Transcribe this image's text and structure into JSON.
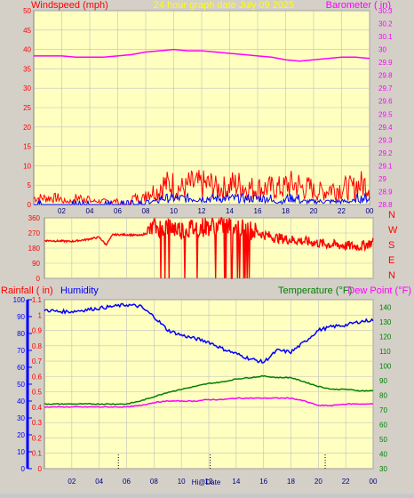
{
  "colors": {
    "panel_bg": "#ffffc0",
    "windspeed": "#ff0000",
    "gust": "#0000ff",
    "barometer": "#ff00ff",
    "wind_direction": "#ff0000",
    "rainfall": "#ff0000",
    "humidity": "#0000ff",
    "temperature": "#008000",
    "dew_point": "#ff00ff",
    "grid": "#c0c0c0"
  },
  "chart_data": [
    {
      "type": "line",
      "left_title": "Windspeed (mph)",
      "title": "24 hour graph date   July 09 2025",
      "right_title": "Barometer ( in)",
      "x_ticks": [
        "02",
        "04",
        "06",
        "08",
        "10",
        "12",
        "14",
        "16",
        "18",
        "20",
        "22",
        "00"
      ],
      "y_ticks": [
        0,
        5,
        10,
        15,
        20,
        25,
        30,
        35,
        40,
        45,
        50
      ],
      "ylim": [
        0,
        50
      ],
      "y2_ticks": [
        "28.8",
        "28.9",
        "29",
        "29.1",
        "29.2",
        "29.3",
        "29.4",
        "29.5",
        "29.6",
        "29.7",
        "29.8",
        "29.9",
        "30",
        "30.1",
        "30.2",
        "30.3"
      ],
      "y2lim": [
        28.8,
        30.3
      ],
      "series": [
        {
          "role": "barometer",
          "x": [
            1,
            2,
            3,
            4,
            5,
            6,
            7,
            8,
            9,
            10,
            11,
            12,
            13,
            14,
            15,
            16,
            17,
            18,
            19,
            20,
            21,
            22,
            23,
            24
          ],
          "values": [
            29.95,
            29.95,
            29.94,
            29.94,
            29.94,
            29.95,
            29.96,
            29.98,
            29.99,
            30.0,
            29.99,
            29.99,
            29.98,
            29.97,
            29.96,
            29.95,
            29.94,
            29.92,
            29.91,
            29.92,
            29.93,
            29.94,
            29.94,
            29.93
          ]
        }
      ],
      "wind_gust_profile": [
        2,
        2,
        1,
        2,
        1,
        1,
        0,
        2,
        4,
        6,
        5,
        6,
        6,
        5,
        6,
        5,
        5,
        5,
        6,
        5,
        4,
        5,
        5,
        6
      ],
      "wind_avg_profile": [
        0,
        0,
        0,
        0,
        0,
        0,
        0,
        0,
        1,
        2,
        2,
        2,
        2,
        2,
        2,
        2,
        2,
        1,
        2,
        1,
        1,
        1,
        1,
        2
      ]
    },
    {
      "type": "line",
      "y_ticks": [
        0,
        90,
        180,
        270,
        360
      ],
      "ylim": [
        0,
        360
      ],
      "compass_labels": [
        "N",
        "W",
        "S",
        "E",
        "N"
      ],
      "series": [
        {
          "role": "wind_direction",
          "x": [
            0,
            2,
            3,
            4,
            4.5,
            5,
            6,
            7,
            7.5,
            8,
            9,
            10,
            11,
            12,
            13,
            14,
            15,
            16,
            17,
            18,
            19,
            20,
            21,
            22,
            23,
            24
          ],
          "values": [
            225,
            220,
            230,
            245,
            200,
            260,
            260,
            255,
            270,
            300,
            310,
            290,
            300,
            310,
            320,
            300,
            290,
            260,
            240,
            230,
            220,
            210,
            200,
            195,
            190,
            215
          ]
        }
      ]
    },
    {
      "type": "line",
      "left_title": "Rainfall ( in)",
      "humidity_title": "Humidity",
      "temp_title": "Temperature (°F)",
      "dew_title": "Dew Point (°F)",
      "x_ticks": [
        "02",
        "04",
        "06",
        "08",
        "10",
        "12",
        "14",
        "16",
        "18",
        "20",
        "22",
        "00"
      ],
      "marker_label": "Hi@Date",
      "y_ticks": [
        0,
        10,
        20,
        30,
        40,
        50,
        60,
        70,
        80,
        90,
        100
      ],
      "ylim": [
        0,
        100
      ],
      "rain_ticks": [
        "0",
        "0.1",
        "0.2",
        "0.3",
        "0.4",
        "0.5",
        "0.6",
        "0.7",
        "0.8",
        "0.9",
        "1",
        "1.1"
      ],
      "rain_lim": [
        0,
        1.1
      ],
      "temp_ticks": [
        30,
        40,
        50,
        60,
        70,
        80,
        90,
        100,
        110,
        120,
        130,
        140
      ],
      "temp_lim": [
        30,
        145
      ],
      "series": [
        {
          "role": "humidity",
          "x": [
            0,
            1,
            2,
            3,
            4,
            5,
            6,
            7,
            8,
            9,
            10,
            11,
            12,
            13,
            14,
            15,
            16,
            17,
            18,
            19,
            20,
            21,
            22,
            23,
            24
          ],
          "values": [
            94,
            93,
            93,
            94,
            95,
            96,
            97,
            96,
            90,
            82,
            79,
            77,
            75,
            71,
            68,
            65,
            63,
            70,
            69,
            75,
            82,
            84,
            85,
            87,
            88
          ]
        },
        {
          "role": "temperature",
          "x": [
            0,
            1,
            2,
            3,
            4,
            5,
            6,
            7,
            8,
            9,
            10,
            11,
            12,
            13,
            14,
            15,
            16,
            17,
            18,
            19,
            20,
            21,
            22,
            23,
            24
          ],
          "values": [
            74,
            74,
            74,
            74,
            74,
            74,
            74,
            76,
            79,
            82,
            84,
            86,
            88,
            89,
            91,
            92,
            93,
            92,
            92,
            89,
            86,
            84,
            84,
            83,
            83
          ]
        },
        {
          "role": "dew_point",
          "x": [
            0,
            1,
            2,
            3,
            4,
            5,
            6,
            7,
            8,
            9,
            10,
            11,
            12,
            13,
            14,
            15,
            16,
            17,
            18,
            19,
            20,
            21,
            22,
            23,
            24
          ],
          "values": [
            72,
            72,
            72,
            72,
            72,
            72,
            72,
            73,
            75,
            76,
            76,
            76,
            77,
            77,
            78,
            78,
            78,
            78,
            78,
            76,
            73,
            73,
            74,
            74,
            74
          ]
        }
      ]
    }
  ]
}
